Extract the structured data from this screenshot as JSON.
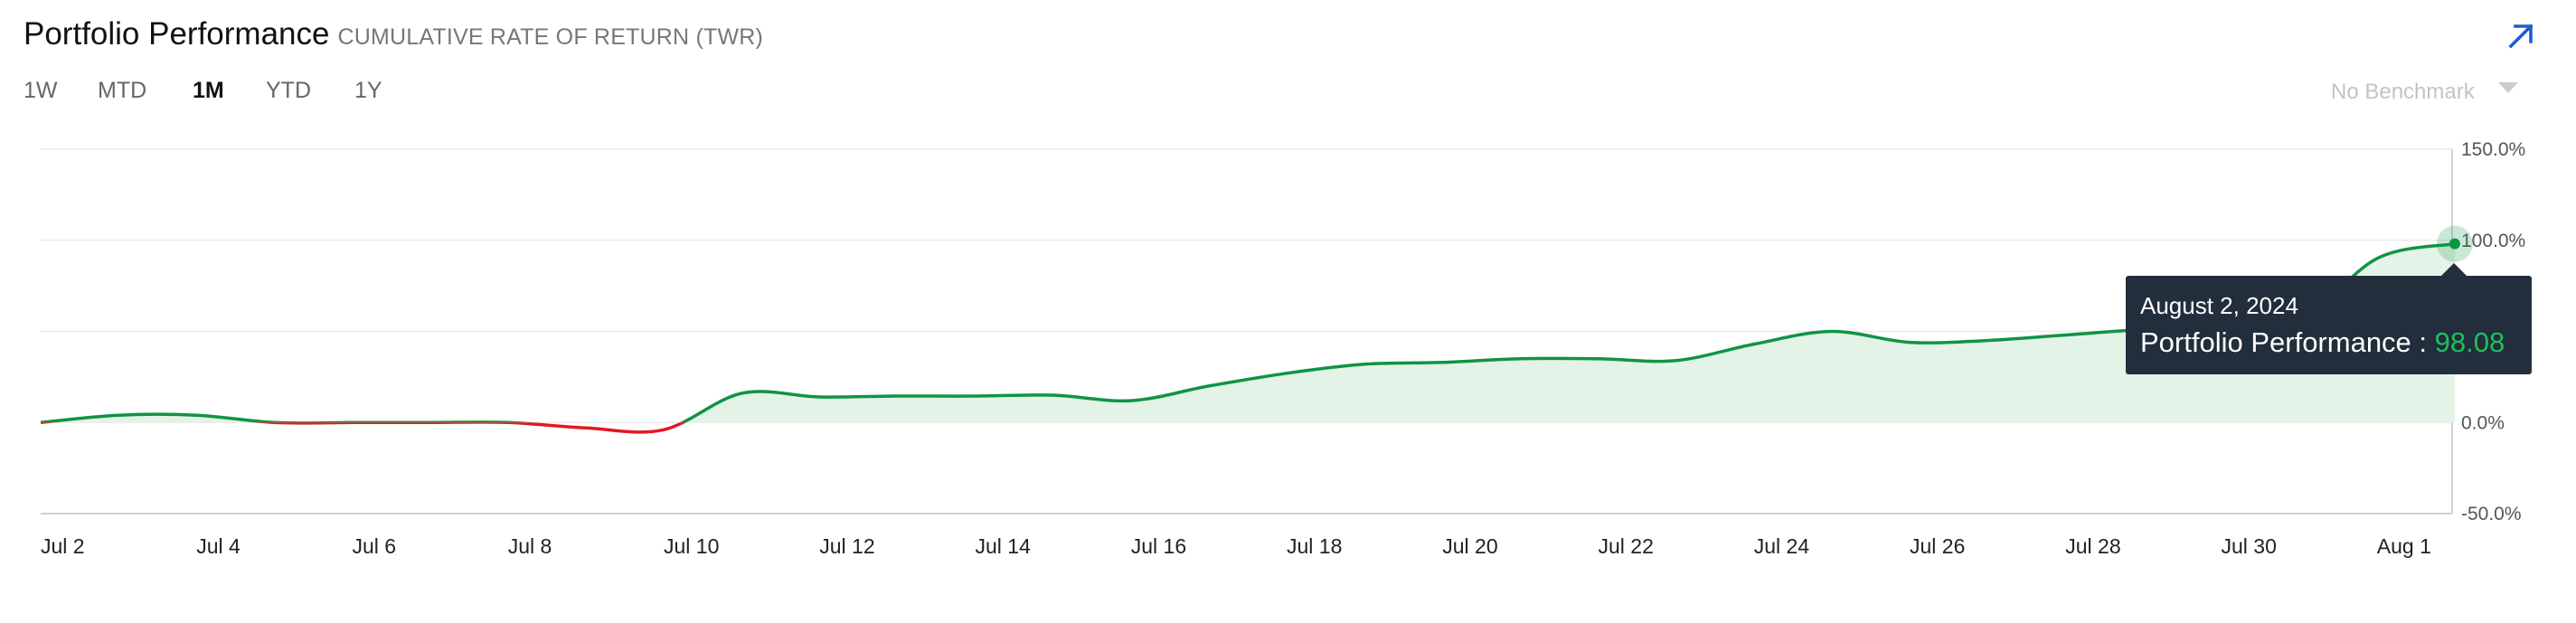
{
  "header": {
    "title": "Portfolio Performance",
    "subtitle": "CUMULATIVE RATE OF RETURN (TWR)"
  },
  "expand": {
    "icon": "arrow-up-right-icon"
  },
  "ranges": [
    {
      "label": "1W",
      "active": false
    },
    {
      "label": "MTD",
      "active": false
    },
    {
      "label": "1M",
      "active": true
    },
    {
      "label": "YTD",
      "active": false
    },
    {
      "label": "1Y",
      "active": false
    }
  ],
  "benchmark": {
    "label": "No Benchmark"
  },
  "tooltip": {
    "date": "August 2, 2024",
    "series": "Portfolio Performance :",
    "value": "98.08"
  },
  "colors": {
    "positive": "#0f9444",
    "negative": "#e5171f",
    "fill": "#e4f3e8",
    "accent": "#1c5fc9",
    "tooltip_bg": "#222e3b"
  },
  "chart_data": {
    "type": "area",
    "title": "Portfolio Performance",
    "subtitle": "CUMULATIVE RATE OF RETURN (TWR)",
    "xlabel": "",
    "ylabel": "",
    "ylim": [
      -50,
      150
    ],
    "y_ticks": [
      150,
      100,
      0,
      -50
    ],
    "y_tick_labels": [
      "150.0%",
      "100.0%",
      "0.0%",
      "-50.0%"
    ],
    "x_ticks": [
      "2024-07-02",
      "2024-07-04",
      "2024-07-06",
      "2024-07-08",
      "2024-07-10",
      "2024-07-12",
      "2024-07-14",
      "2024-07-16",
      "2024-07-18",
      "2024-07-20",
      "2024-07-22",
      "2024-07-24",
      "2024-07-26",
      "2024-07-28",
      "2024-07-30",
      "2024-08-01"
    ],
    "x_tick_labels": [
      "Jul 2",
      "Jul 4",
      "Jul 6",
      "Jul 8",
      "Jul 10",
      "Jul 12",
      "Jul 14",
      "Jul 16",
      "Jul 18",
      "Jul 20",
      "Jul 22",
      "Jul 24",
      "Jul 26",
      "Jul 28",
      "Jul 30",
      "Aug 1"
    ],
    "grid": true,
    "legend": "none",
    "series": [
      {
        "name": "Portfolio Performance",
        "x": [
          "2024-07-02",
          "2024-07-03",
          "2024-07-04",
          "2024-07-05",
          "2024-07-06",
          "2024-07-07",
          "2024-07-08",
          "2024-07-09",
          "2024-07-10",
          "2024-07-11",
          "2024-07-12",
          "2024-07-13",
          "2024-07-14",
          "2024-07-15",
          "2024-07-16",
          "2024-07-17",
          "2024-07-18",
          "2024-07-19",
          "2024-07-20",
          "2024-07-21",
          "2024-07-22",
          "2024-07-23",
          "2024-07-24",
          "2024-07-25",
          "2024-07-26",
          "2024-07-27",
          "2024-07-28",
          "2024-07-29",
          "2024-07-30",
          "2024-07-31",
          "2024-08-01",
          "2024-08-02"
        ],
        "values": [
          0,
          4,
          4,
          0,
          0,
          0,
          0,
          -3,
          -4,
          16,
          14,
          14.5,
          14.5,
          15,
          12,
          20,
          27,
          32,
          33,
          35,
          35,
          34,
          43,
          50,
          44,
          45,
          48,
          51,
          52,
          55,
          90,
          98.08
        ]
      }
    ]
  }
}
